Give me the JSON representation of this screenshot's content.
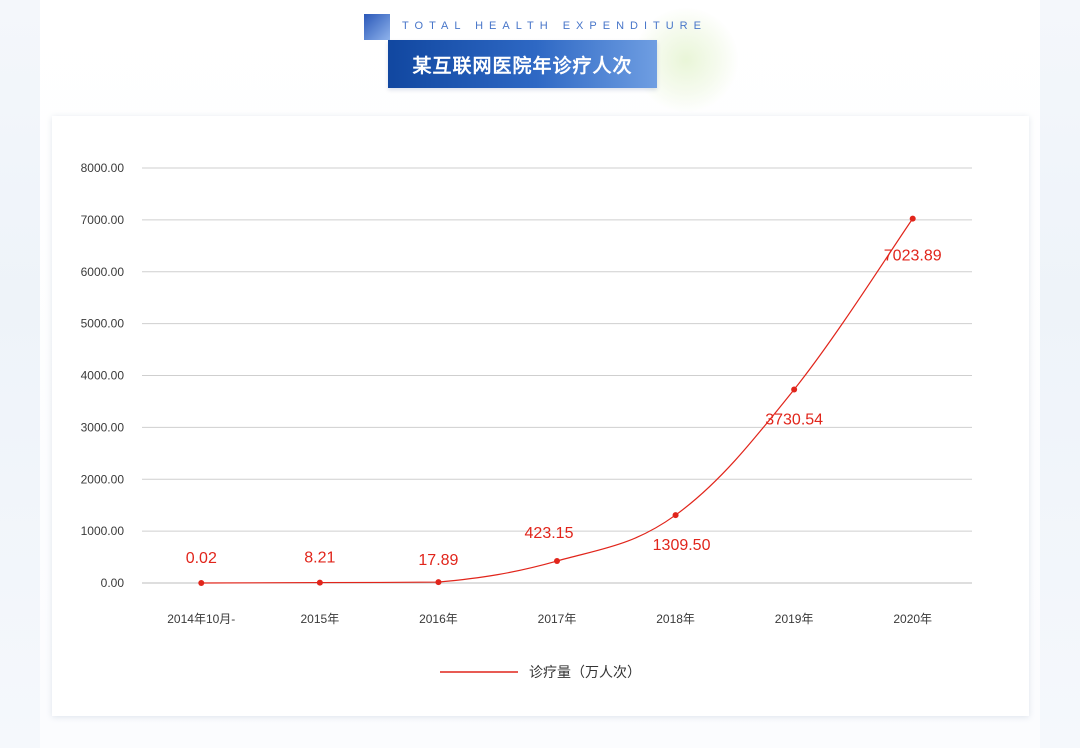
{
  "header": {
    "subtitle": "TOTAL HEALTH EXPENDITURE",
    "title": "某互联网医院年诊疗人次"
  },
  "colors": {
    "series": "#e1251b",
    "title_bar": "#1a4fa8",
    "grid": "#cfcfcf"
  },
  "chart_data": {
    "type": "line",
    "title": "某互联网医院年诊疗人次",
    "xlabel": "",
    "ylabel": "",
    "ylim": [
      0,
      8000
    ],
    "y_ticks": [
      "0.00",
      "1000.00",
      "2000.00",
      "3000.00",
      "4000.00",
      "5000.00",
      "6000.00",
      "7000.00",
      "8000.00"
    ],
    "categories": [
      "2014年10月-",
      "2015年",
      "2016年",
      "2017年",
      "2018年",
      "2019年",
      "2020年"
    ],
    "series": [
      {
        "name": "诊疗量（万人次）",
        "values": [
          0.02,
          8.21,
          17.89,
          423.15,
          1309.5,
          3730.54,
          7023.89
        ],
        "labels": [
          "0.02",
          "8.21",
          "17.89",
          "423.15",
          "1309.50",
          "3730.54",
          "7023.89"
        ]
      }
    ],
    "grid": true,
    "legend": "bottom"
  }
}
